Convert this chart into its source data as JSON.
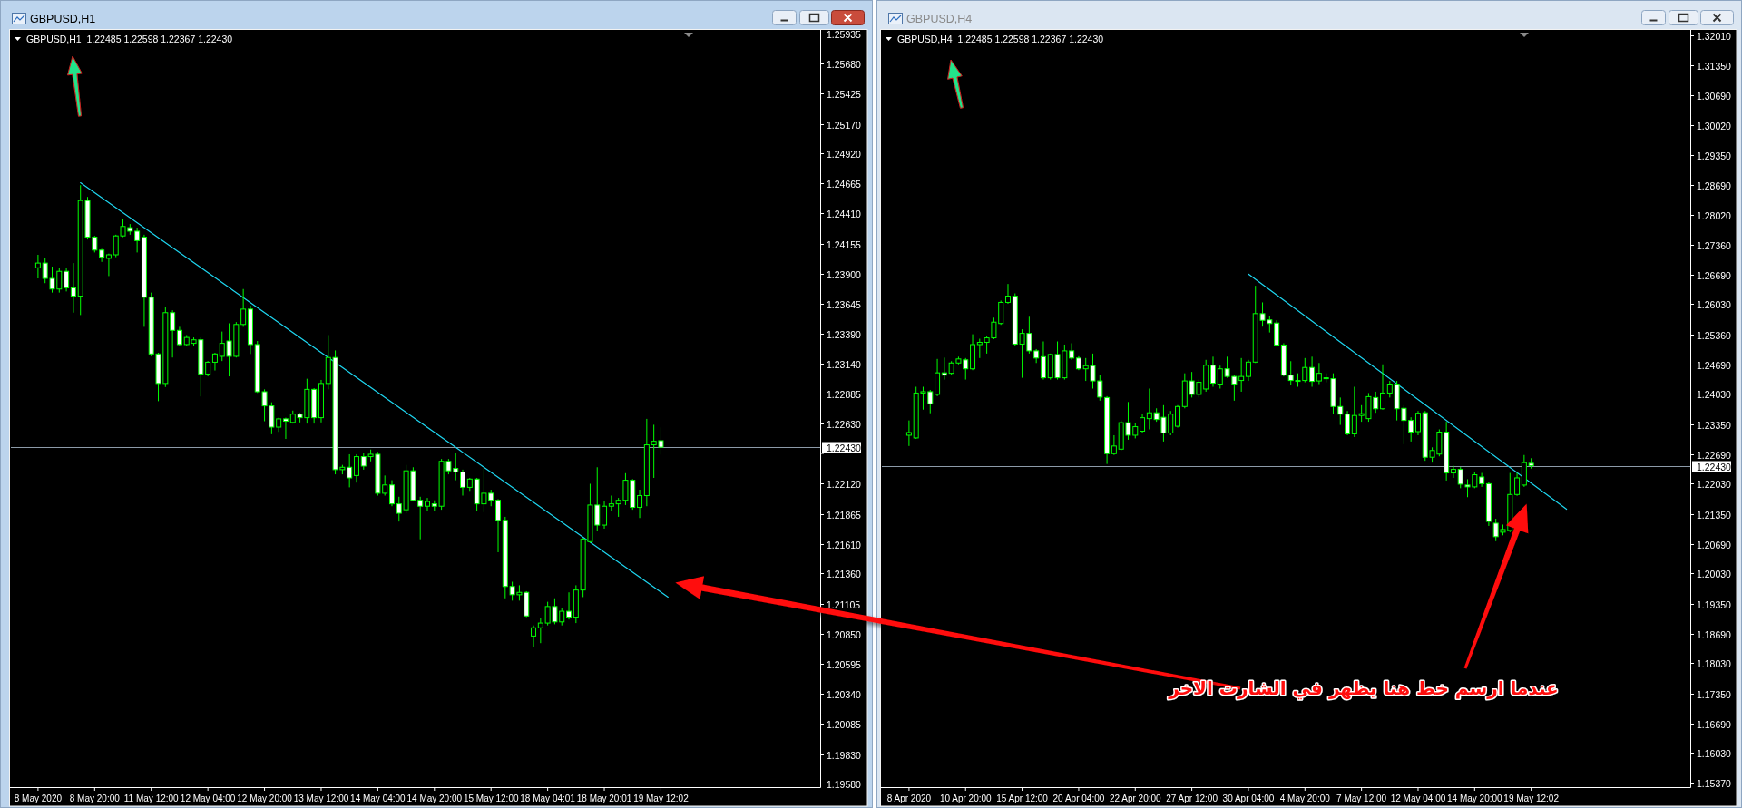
{
  "chart_data": [
    {
      "type": "candlestick",
      "title": "GBPUSD,H1",
      "subtitle": "GBPUSD,H1  1.22485 1.22598 1.22367 1.22430",
      "color": "#00ff00",
      "categories": [
        "8 May 2020",
        null,
        null,
        null,
        null,
        null,
        null,
        null,
        "8 May 20:00",
        null,
        null,
        null,
        null,
        null,
        null,
        null,
        "11 May 12:00",
        null,
        null,
        null,
        null,
        null,
        null,
        null,
        "12 May 04:00",
        null,
        null,
        null,
        null,
        null,
        null,
        null,
        "12 May 20:00",
        null,
        null,
        null,
        null,
        null,
        null,
        null,
        "13 May 12:00",
        null,
        null,
        null,
        null,
        null,
        null,
        null,
        "14 May 04:00",
        null,
        null,
        null,
        null,
        null,
        null,
        null,
        "14 May 20:00",
        null,
        null,
        null,
        null,
        null,
        null,
        null,
        "15 May 12:00",
        null,
        null,
        null,
        null,
        null,
        null,
        null,
        "18 May 04:01",
        null,
        null,
        null,
        null,
        null,
        null,
        null,
        "18 May 20:01",
        null,
        null,
        null,
        null,
        null,
        null,
        null,
        "19 May 12:02",
        null,
        null,
        null,
        null,
        null,
        null,
        null,
        null,
        null,
        null,
        null,
        null,
        null,
        null,
        null,
        null,
        null,
        null,
        null,
        null,
        null,
        null
      ],
      "ohlc": [
        [
          1.2395,
          1.2406,
          1.2386,
          1.2399
        ],
        [
          1.2399,
          1.2403,
          1.2382,
          1.2386
        ],
        [
          1.2386,
          1.2396,
          1.2374,
          1.2377
        ],
        [
          1.2377,
          1.2395,
          1.2374,
          1.2392
        ],
        [
          1.2392,
          1.2395,
          1.2375,
          1.2378
        ],
        [
          1.2378,
          1.2399,
          1.2357,
          1.2371
        ],
        [
          1.2371,
          1.2465,
          1.2355,
          1.2452
        ],
        [
          1.2452,
          1.2455,
          1.2419,
          1.2421
        ],
        [
          1.2421,
          1.2422,
          1.2408,
          1.241
        ],
        [
          1.241,
          1.2411,
          1.24,
          1.2404
        ],
        [
          1.2403,
          1.2407,
          1.2388,
          1.2406
        ],
        [
          1.2406,
          1.2423,
          1.2404,
          1.2422
        ],
        [
          1.2422,
          1.2436,
          1.2421,
          1.243
        ],
        [
          1.2429,
          1.2432,
          1.2423,
          1.2426
        ],
        [
          1.2426,
          1.2429,
          1.2408,
          1.2418
        ],
        [
          1.2421,
          1.2423,
          1.2345,
          1.237
        ],
        [
          1.237,
          1.2374,
          1.232,
          1.2322
        ],
        [
          1.2322,
          1.2323,
          1.2282,
          1.2297
        ],
        [
          1.2297,
          1.2362,
          1.2294,
          1.2357
        ],
        [
          1.2357,
          1.2359,
          1.2319,
          1.2342
        ],
        [
          1.2342,
          1.2345,
          1.2329,
          1.233
        ],
        [
          1.233,
          1.2338,
          1.2329,
          1.2336
        ],
        [
          1.2331,
          1.2336,
          1.2329,
          1.2334
        ],
        [
          1.2334,
          1.2336,
          1.2286,
          1.2305
        ],
        [
          1.2305,
          1.2316,
          1.2303,
          1.2315
        ],
        [
          1.2315,
          1.2323,
          1.2308,
          1.2322
        ],
        [
          1.232,
          1.2341,
          1.2316,
          1.2331
        ],
        [
          1.2333,
          1.2348,
          1.2303,
          1.232
        ],
        [
          1.232,
          1.2349,
          1.2319,
          1.2347
        ],
        [
          1.2347,
          1.2377,
          1.2345,
          1.236
        ],
        [
          1.236,
          1.2363,
          1.2322,
          1.233
        ],
        [
          1.233,
          1.2333,
          1.2289,
          1.229
        ],
        [
          1.229,
          1.2292,
          1.2265,
          1.2278
        ],
        [
          1.2278,
          1.2281,
          1.2254,
          1.226
        ],
        [
          1.226,
          1.2268,
          1.2256,
          1.2267
        ],
        [
          1.2267,
          1.2268,
          1.225,
          1.2265
        ],
        [
          1.2264,
          1.2274,
          1.2263,
          1.2271
        ],
        [
          1.2271,
          1.2272,
          1.2264,
          1.2268
        ],
        [
          1.2268,
          1.2301,
          1.2263,
          1.2292
        ],
        [
          1.2292,
          1.2293,
          1.2263,
          1.2268
        ],
        [
          1.2268,
          1.23,
          1.2264,
          1.2297
        ],
        [
          1.2297,
          1.2338,
          1.2292,
          1.2319
        ],
        [
          1.2319,
          1.2325,
          1.222,
          1.2224
        ],
        [
          1.2224,
          1.2228,
          1.222,
          1.2226
        ],
        [
          1.2226,
          1.2237,
          1.2209,
          1.2217
        ],
        [
          1.2219,
          1.2237,
          1.2213,
          1.2235
        ],
        [
          1.2235,
          1.2238,
          1.2224,
          1.2227
        ],
        [
          1.2235,
          1.2241,
          1.2231,
          1.2237
        ],
        [
          1.2237,
          1.2239,
          1.2202,
          1.2204
        ],
        [
          1.2204,
          1.2219,
          1.2202,
          1.2211
        ],
        [
          1.2211,
          1.2215,
          1.2193,
          1.2195
        ],
        [
          1.2195,
          1.2201,
          1.218,
          1.2187
        ],
        [
          1.219,
          1.2228,
          1.2187,
          1.2223
        ],
        [
          1.2223,
          1.2226,
          1.2197,
          1.2198
        ],
        [
          1.2198,
          1.2201,
          1.2165,
          1.2193
        ],
        [
          1.2193,
          1.22,
          1.2189,
          1.2197
        ],
        [
          1.2195,
          1.2198,
          1.2189,
          1.2193
        ],
        [
          1.2193,
          1.2233,
          1.219,
          1.2231
        ],
        [
          1.2231,
          1.2233,
          1.222,
          1.2223
        ],
        [
          1.2225,
          1.2238,
          1.2215,
          1.2222
        ],
        [
          1.2222,
          1.2224,
          1.2202,
          1.2209
        ],
        [
          1.2209,
          1.2217,
          1.2206,
          1.2216
        ],
        [
          1.2216,
          1.2217,
          1.2189,
          1.2195
        ],
        [
          1.2195,
          1.2225,
          1.2188,
          1.2204
        ],
        [
          1.2204,
          1.2207,
          1.2193,
          1.2198
        ],
        [
          1.2198,
          1.2199,
          1.2154,
          1.2181
        ],
        [
          1.2181,
          1.2184,
          1.2115,
          1.2125
        ],
        [
          1.2125,
          1.2129,
          1.2113,
          1.2118
        ],
        [
          1.2118,
          1.2126,
          1.2113,
          1.212
        ],
        [
          1.212,
          1.2121,
          1.2099,
          1.21
        ],
        [
          1.2083,
          1.2092,
          1.2074,
          1.209
        ],
        [
          1.209,
          1.2098,
          1.2077,
          1.2094
        ],
        [
          1.2094,
          1.2112,
          1.2092,
          1.2108
        ],
        [
          1.2108,
          1.2115,
          1.2093,
          1.2095
        ],
        [
          1.2095,
          1.2107,
          1.2092,
          1.2104
        ],
        [
          1.2104,
          1.212,
          1.2097,
          1.2099
        ],
        [
          1.2099,
          1.2126,
          1.2094,
          1.2122
        ],
        [
          1.2122,
          1.2166,
          1.2116,
          1.2165
        ],
        [
          1.2163,
          1.2212,
          1.2162,
          1.2194
        ],
        [
          1.2194,
          1.2226,
          1.2172,
          1.2177
        ],
        [
          1.2177,
          1.2197,
          1.2174,
          1.2193
        ],
        [
          1.2193,
          1.2202,
          1.2189,
          1.2195
        ],
        [
          1.2195,
          1.22,
          1.2184,
          1.2198
        ],
        [
          1.2198,
          1.2221,
          1.2194,
          1.2215
        ],
        [
          1.2215,
          1.2216,
          1.219,
          1.2192
        ],
        [
          1.2192,
          1.2207,
          1.2183,
          1.2202
        ],
        [
          1.2202,
          1.2267,
          1.2193,
          1.2245
        ],
        [
          1.2245,
          1.2262,
          1.2217,
          1.2248
        ],
        [
          1.22485,
          1.22598,
          1.22367,
          1.2243
        ],
        null,
        null,
        null,
        null,
        null,
        null,
        null,
        null,
        null,
        null,
        null,
        null,
        null,
        null,
        null,
        null,
        null,
        null,
        null,
        null,
        null,
        null
      ],
      "series": [
        {
          "type": "line",
          "color": "#1ed6f0",
          "values": [
            null,
            null,
            null,
            null,
            null,
            null,
            1.2467,
            null,
            null,
            null,
            null,
            null,
            null,
            null,
            null,
            null,
            null,
            null,
            null,
            null,
            null,
            null,
            null,
            null,
            null,
            null,
            null,
            null,
            null,
            null,
            null,
            null,
            null,
            null,
            null,
            null,
            null,
            null,
            null,
            null,
            null,
            null,
            null,
            null,
            null,
            null,
            null,
            null,
            null,
            null,
            null,
            null,
            null,
            null,
            null,
            null,
            null,
            null,
            null,
            null,
            null,
            null,
            null,
            null,
            null,
            null,
            null,
            null,
            null,
            null,
            null,
            null,
            null,
            null,
            null,
            null,
            null,
            null,
            null,
            null,
            null,
            null,
            null,
            null,
            null,
            null,
            null,
            null,
            null,
            1.2116,
            null,
            null,
            null,
            null,
            null,
            null,
            null,
            null,
            null,
            null,
            null,
            null,
            null,
            null,
            null,
            null,
            null,
            null,
            null,
            null,
            null
          ]
        }
      ],
      "ylim": [
        1.1955,
        1.2595
      ],
      "yticks": [
        1.25935,
        {
          "value": 1.2568,
          "label": "1.25680"
        },
        1.25425,
        {
          "value": 1.2517,
          "label": "1.25170"
        },
        {
          "value": 1.2492,
          "label": "1.24920"
        },
        1.24665,
        {
          "value": 1.2441,
          "label": "1.24410"
        },
        1.24155,
        {
          "value": 1.239,
          "label": "1.23900"
        },
        1.23645,
        {
          "value": 1.2339,
          "label": "1.23390"
        },
        {
          "value": 1.2314,
          "label": "1.23140"
        },
        1.22885,
        {
          "value": 1.2263,
          "label": "1.22630"
        },
        {
          "value": 1.22375,
          "label": null
        },
        {
          "value": 1.2212,
          "label": "1.22120"
        },
        1.21865,
        {
          "value": 1.2161,
          "label": "1.21610"
        },
        {
          "value": 1.2136,
          "label": "1.21360"
        },
        1.21105,
        {
          "value": 1.2085,
          "label": "1.20850"
        },
        1.20595,
        {
          "value": 1.2034,
          "label": "1.20340"
        },
        1.20085,
        {
          "value": 1.1983,
          "label": "1.19830"
        },
        {
          "value": 1.1958,
          "label": "1.19580"
        }
      ],
      "ref_lines": [
        {
          "axis": "y",
          "value": 1.2243,
          "label": "1.22430",
          "color": "#8c9aa8"
        }
      ]
    },
    {
      "type": "candlestick",
      "title": "GBPUSD,H4",
      "subtitle": "GBPUSD,H4  1.22485 1.22598 1.22367 1.22430",
      "color": "#00ff00",
      "categories": [
        "8 Apr 2020",
        null,
        null,
        null,
        null,
        null,
        null,
        null,
        "10 Apr 20:00",
        null,
        null,
        null,
        null,
        null,
        null,
        null,
        "15 Apr 12:00",
        null,
        null,
        null,
        null,
        null,
        null,
        null,
        "20 Apr 04:00",
        null,
        null,
        null,
        null,
        null,
        null,
        null,
        "22 Apr 20:00",
        null,
        null,
        null,
        null,
        null,
        null,
        null,
        "27 Apr 12:00",
        null,
        null,
        null,
        null,
        null,
        null,
        null,
        "30 Apr 04:00",
        null,
        null,
        null,
        null,
        null,
        null,
        null,
        "4 May 20:00",
        null,
        null,
        null,
        null,
        null,
        null,
        null,
        "7 May 12:00",
        null,
        null,
        null,
        null,
        null,
        null,
        null,
        "12 May 04:00",
        null,
        null,
        null,
        null,
        null,
        null,
        null,
        "14 May 20:00",
        null,
        null,
        null,
        null,
        null,
        null,
        null,
        "19 May 12:02",
        null,
        null,
        null,
        null,
        null,
        null,
        null,
        null,
        null,
        null,
        null,
        null,
        null,
        null,
        null,
        null,
        null,
        null,
        null,
        null,
        null,
        null
      ],
      "ohlc": [
        [
          1.2311,
          1.2344,
          1.2287,
          1.2317
        ],
        [
          1.2305,
          1.2419,
          1.2303,
          1.2405
        ],
        [
          1.2405,
          1.2419,
          1.2368,
          1.2408
        ],
        [
          1.2408,
          1.2412,
          1.236,
          1.2381
        ],
        [
          1.2402,
          1.2481,
          1.2398,
          1.245
        ],
        [
          1.245,
          1.2484,
          1.2435,
          1.2445
        ],
        [
          1.2449,
          1.2476,
          1.2445,
          1.2472
        ],
        [
          1.2472,
          1.2486,
          1.2469,
          1.2481
        ],
        [
          1.2479,
          1.2483,
          1.2435,
          1.2459
        ],
        [
          1.2459,
          1.2536,
          1.2456,
          1.2513
        ],
        [
          1.2513,
          1.2526,
          1.2483,
          1.2518
        ],
        [
          1.2518,
          1.2533,
          1.2493,
          1.2528
        ],
        [
          1.2528,
          1.2573,
          1.2525,
          1.2563
        ],
        [
          1.256,
          1.2611,
          1.2557,
          1.2607
        ],
        [
          1.2607,
          1.2648,
          1.2604,
          1.2621
        ],
        [
          1.2621,
          1.2627,
          1.2509,
          1.2514
        ],
        [
          1.2514,
          1.2547,
          1.2439,
          1.2538
        ],
        [
          1.2538,
          1.2575,
          1.2493,
          1.2499
        ],
        [
          1.2499,
          1.2503,
          1.2472,
          1.2483
        ],
        [
          1.2486,
          1.252,
          1.2435,
          1.2439
        ],
        [
          1.2439,
          1.2493,
          1.2435,
          1.2491
        ],
        [
          1.2491,
          1.252,
          1.2435,
          1.2439
        ],
        [
          1.2439,
          1.2513,
          1.2435,
          1.2499
        ],
        [
          1.2499,
          1.2516,
          1.2479,
          1.2483
        ],
        [
          1.2483,
          1.2487,
          1.2456,
          1.2459
        ],
        [
          1.2459,
          1.2483,
          1.2432,
          1.2466
        ],
        [
          1.2466,
          1.2493,
          1.2415,
          1.2432
        ],
        [
          1.2432,
          1.2445,
          1.2388,
          1.2396
        ],
        [
          1.2395,
          1.2398,
          1.2247,
          1.227
        ],
        [
          1.227,
          1.2311,
          1.2267,
          1.2287
        ],
        [
          1.228,
          1.2344,
          1.2277,
          1.2339
        ],
        [
          1.2339,
          1.2385,
          1.2301,
          1.2311
        ],
        [
          1.2311,
          1.2338,
          1.2304,
          1.233
        ],
        [
          1.232,
          1.2358,
          1.2317,
          1.235
        ],
        [
          1.2348,
          1.2415,
          1.2324,
          1.2361
        ],
        [
          1.2361,
          1.2371,
          1.2341,
          1.2346
        ],
        [
          1.2351,
          1.2378,
          1.2297,
          1.2316
        ],
        [
          1.2316,
          1.2365,
          1.2311,
          1.2358
        ],
        [
          1.2331,
          1.2378,
          1.2328,
          1.2375
        ],
        [
          1.2375,
          1.2449,
          1.2371,
          1.2432
        ],
        [
          1.2432,
          1.2452,
          1.2395,
          1.2402
        ],
        [
          1.2402,
          1.2435,
          1.2395,
          1.2429
        ],
        [
          1.2414,
          1.2479,
          1.2408,
          1.2467
        ],
        [
          1.2467,
          1.2486,
          1.2419,
          1.2427
        ],
        [
          1.2425,
          1.2466,
          1.2415,
          1.2459
        ],
        [
          1.2459,
          1.2486,
          1.2439,
          1.2442
        ],
        [
          1.2442,
          1.2445,
          1.2388,
          1.2425
        ],
        [
          1.2433,
          1.2483,
          1.2408,
          1.2442
        ],
        [
          1.2442,
          1.2479,
          1.2432,
          1.2474
        ],
        [
          1.2474,
          1.2644,
          1.2472,
          1.2582
        ],
        [
          1.2582,
          1.2607,
          1.2553,
          1.2567
        ],
        [
          1.2568,
          1.2577,
          1.254,
          1.256
        ],
        [
          1.2561,
          1.2567,
          1.2509,
          1.2512
        ],
        [
          1.2512,
          1.2516,
          1.2442,
          1.2445
        ],
        [
          1.2445,
          1.2476,
          1.2422,
          1.2433
        ],
        [
          1.2433,
          1.2449,
          1.2419,
          1.2432
        ],
        [
          1.2433,
          1.2483,
          1.2429,
          1.2462
        ],
        [
          1.2462,
          1.2486,
          1.2419,
          1.2431
        ],
        [
          1.2432,
          1.2472,
          1.2425,
          1.2449
        ],
        [
          1.2439,
          1.2449,
          1.2429,
          1.2437
        ],
        [
          1.2437,
          1.2449,
          1.2358,
          1.2375
        ],
        [
          1.2375,
          1.2395,
          1.2334,
          1.2358
        ],
        [
          1.2358,
          1.2365,
          1.2311,
          1.2314
        ],
        [
          1.2314,
          1.2419,
          1.2307,
          1.2355
        ],
        [
          1.2355,
          1.2378,
          1.2341,
          1.2359
        ],
        [
          1.2348,
          1.2405,
          1.2341,
          1.2397
        ],
        [
          1.2395,
          1.2408,
          1.2361,
          1.237
        ],
        [
          1.237,
          1.2469,
          1.2368,
          1.2405
        ],
        [
          1.2405,
          1.2432,
          1.2395,
          1.2425
        ],
        [
          1.2425,
          1.2432,
          1.2344,
          1.237
        ],
        [
          1.2371,
          1.2378,
          1.2291,
          1.2344
        ],
        [
          1.2344,
          1.2351,
          1.2297,
          1.2318
        ],
        [
          1.2319,
          1.2365,
          1.2311,
          1.236
        ],
        [
          1.2361,
          1.2365,
          1.2254,
          1.2262
        ],
        [
          1.2262,
          1.2284,
          1.225,
          1.2277
        ],
        [
          1.2269,
          1.2324,
          1.2264,
          1.2318
        ],
        [
          1.2318,
          1.2341,
          1.221,
          1.2227
        ],
        [
          1.2227,
          1.2243,
          1.2216,
          1.2235
        ],
        [
          1.2235,
          1.224,
          1.2193,
          1.2202
        ],
        [
          1.22,
          1.2213,
          1.2173,
          1.2196
        ],
        [
          1.2196,
          1.223,
          1.2193,
          1.2223
        ],
        [
          1.2218,
          1.2227,
          1.2196,
          1.2203
        ],
        [
          1.2203,
          1.2206,
          1.2109,
          1.2119
        ],
        [
          1.2115,
          1.2125,
          1.2075,
          1.2085
        ],
        [
          1.2095,
          1.2112,
          1.2088,
          1.2101
        ],
        [
          1.2099,
          1.2227,
          1.2095,
          1.2179
        ],
        [
          1.2179,
          1.2227,
          1.2176,
          1.2216
        ],
        [
          1.22,
          1.2267,
          1.2196,
          1.225
        ],
        [
          1.22485,
          1.22598,
          1.22367,
          1.2243
        ],
        null,
        null,
        null,
        null,
        null,
        null,
        null,
        null,
        null,
        null,
        null,
        null,
        null,
        null,
        null,
        null,
        null,
        null,
        null,
        null,
        null,
        null
      ],
      "series": [
        {
          "type": "line",
          "color": "#1ed6f0",
          "values": [
            null,
            null,
            null,
            null,
            null,
            null,
            null,
            null,
            null,
            null,
            null,
            null,
            null,
            null,
            null,
            null,
            null,
            null,
            null,
            null,
            null,
            null,
            null,
            null,
            null,
            null,
            null,
            null,
            null,
            null,
            null,
            null,
            null,
            null,
            null,
            null,
            null,
            null,
            null,
            null,
            null,
            null,
            null,
            null,
            null,
            null,
            null,
            null,
            1.267,
            null,
            null,
            null,
            null,
            null,
            null,
            null,
            null,
            null,
            null,
            null,
            null,
            null,
            null,
            null,
            null,
            null,
            null,
            null,
            null,
            null,
            null,
            null,
            null,
            null,
            null,
            null,
            null,
            null,
            null,
            null,
            null,
            null,
            null,
            null,
            null,
            null,
            null,
            null,
            null,
            null,
            null,
            null,
            null,
            1.2146,
            null,
            null,
            null,
            null,
            null,
            null,
            null,
            null,
            null,
            null,
            null,
            null,
            null,
            null,
            null,
            null,
            null
          ]
        }
      ],
      "ylim": [
        1.1527,
        1.321
      ],
      "yticks": [
        {
          "value": 1.3201,
          "label": "1.32010"
        },
        {
          "value": 1.3135,
          "label": "1.31350"
        },
        {
          "value": 1.3069,
          "label": "1.30690"
        },
        {
          "value": 1.3002,
          "label": "1.30020"
        },
        {
          "value": 1.2935,
          "label": "1.29350"
        },
        {
          "value": 1.2869,
          "label": "1.28690"
        },
        {
          "value": 1.2802,
          "label": "1.28020"
        },
        {
          "value": 1.2736,
          "label": "1.27360"
        },
        {
          "value": 1.2669,
          "label": "1.26690"
        },
        {
          "value": 1.2603,
          "label": "1.26030"
        },
        {
          "value": 1.2536,
          "label": "1.25360"
        },
        {
          "value": 1.2469,
          "label": "1.24690"
        },
        {
          "value": 1.2403,
          "label": "1.24030"
        },
        {
          "value": 1.2335,
          "label": "1.23350"
        },
        {
          "value": 1.2269,
          "label": "1.22690"
        },
        {
          "value": 1.2203,
          "label": "1.22030"
        },
        {
          "value": 1.2135,
          "label": "1.21350"
        },
        {
          "value": 1.2069,
          "label": "1.20690"
        },
        {
          "value": 1.2003,
          "label": "1.20030"
        },
        {
          "value": 1.1935,
          "label": "1.19350"
        },
        {
          "value": 1.1869,
          "label": "1.18690"
        },
        {
          "value": 1.1803,
          "label": "1.18030"
        },
        {
          "value": 1.1735,
          "label": "1.17350"
        },
        {
          "value": 1.1669,
          "label": "1.16690"
        },
        {
          "value": 1.1603,
          "label": "1.16030"
        },
        {
          "value": 1.1537,
          "label": "1.15370"
        }
      ],
      "ref_lines": [
        {
          "axis": "y",
          "value": 1.2243,
          "label": "1.22430",
          "color": "#8c9aa8"
        }
      ],
      "annotations": [
        "عندما ارسم خط هنا يظهر في الشارت الاخر"
      ]
    }
  ]
}
